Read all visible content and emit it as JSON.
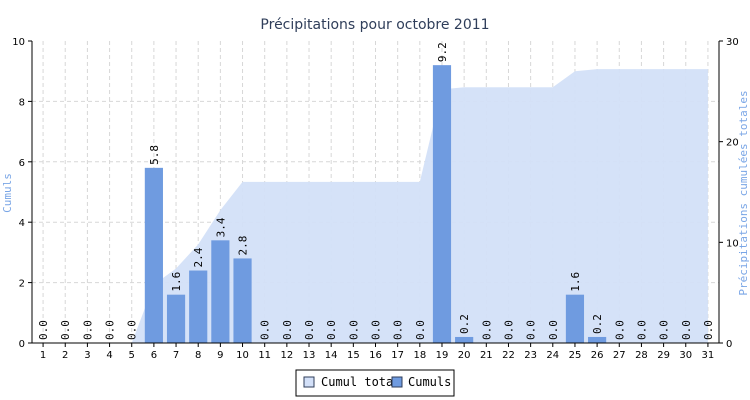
{
  "chart_data": {
    "type": "bar",
    "title": "Précipitations pour octobre 2011",
    "xlabel": "",
    "ylabel": "Cumuls",
    "y2label": "Précipitations cumulées totales",
    "ylim": [
      0,
      10
    ],
    "y2lim": [
      0,
      30
    ],
    "yticks": [
      "0",
      "2",
      "4",
      "6",
      "8",
      "10"
    ],
    "y2ticks": [
      "0",
      "10",
      "20",
      "30"
    ],
    "categories": [
      "1",
      "2",
      "3",
      "4",
      "5",
      "6",
      "7",
      "8",
      "9",
      "10",
      "11",
      "12",
      "13",
      "14",
      "15",
      "16",
      "17",
      "18",
      "19",
      "20",
      "21",
      "22",
      "23",
      "24",
      "25",
      "26",
      "27",
      "28",
      "29",
      "30",
      "31"
    ],
    "grid": true,
    "legend_position": "bottom",
    "series": [
      {
        "name": "Cumul total",
        "type": "area",
        "axis": "right",
        "color": "#d3e0f8",
        "values": [
          0,
          0,
          0,
          0,
          0,
          5.8,
          7.4,
          9.8,
          13.2,
          16.0,
          16.0,
          16.0,
          16.0,
          16.0,
          16.0,
          16.0,
          16.0,
          16.0,
          25.2,
          25.4,
          25.4,
          25.4,
          25.4,
          25.4,
          27.0,
          27.2,
          27.2,
          27.2,
          27.2,
          27.2,
          27.2
        ]
      },
      {
        "name": "Cumuls",
        "type": "bar",
        "axis": "left",
        "color": "#6f9be0",
        "values": [
          0.0,
          0.0,
          0.0,
          0.0,
          0.0,
          5.8,
          1.6,
          2.4,
          3.4,
          2.8,
          0.0,
          0.0,
          0.0,
          0.0,
          0.0,
          0.0,
          0.0,
          0.0,
          9.2,
          0.2,
          0.0,
          0.0,
          0.0,
          0.0,
          1.6,
          0.2,
          0.0,
          0.0,
          0.0,
          0.0,
          0.0
        ],
        "labels": [
          "0.0",
          "0.0",
          "0.0",
          "0.0",
          "0.0",
          "5.8",
          "1.6",
          "2.4",
          "3.4",
          "2.8",
          "0.0",
          "0.0",
          "0.0",
          "0.0",
          "0.0",
          "0.0",
          "0.0",
          "0.0",
          "9.2",
          "0.2",
          "0.0",
          "0.0",
          "0.0",
          "0.0",
          "1.6",
          "0.2",
          "0.0",
          "0.0",
          "0.0",
          "0.0",
          "0.0"
        ]
      }
    ]
  }
}
